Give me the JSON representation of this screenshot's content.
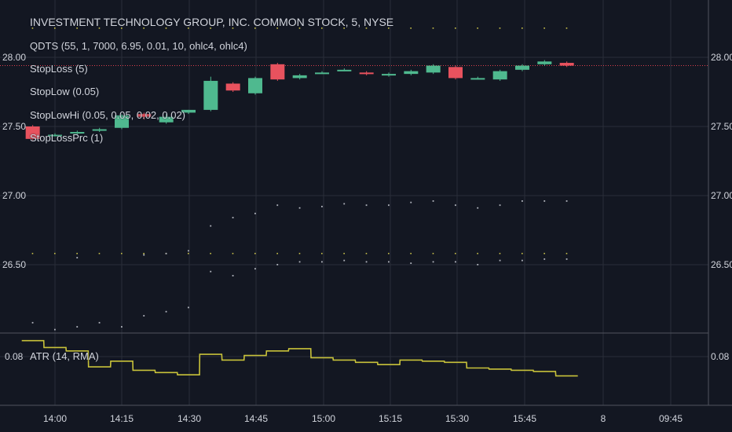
{
  "legend": {
    "title": "INVESTMENT TECHNOLOGY GROUP, INC. COMMON STOCK, 5, NYSE",
    "qdts": "QDTS (55, 1, 7000, 6.95, 0.01, 10, ohlc4, ohlc4)",
    "stoploss": "StopLoss (5)",
    "stoplow": "StopLow (0.05)",
    "stoplowhi": "StopLowHi (0.05, 0.05, 0.02, 0.02)",
    "stoplossprc": "StopLossPrc (1)",
    "atr": "ATR (14, RMA)"
  },
  "colors": {
    "background": "#131722",
    "grid": "#2a2e39",
    "up": "#4fb98f",
    "down": "#e8525e",
    "atr_line": "#c8c23a",
    "stop_line": "#e0404e",
    "dots": "#b2b5be",
    "yellow_dots": "#c9c24a",
    "text": "#d1d4dc"
  },
  "chart_data": [
    {
      "type": "candlestick",
      "title": "INVESTMENT TECHNOLOGY GROUP, INC. COMMON STOCK, 5, NYSE",
      "x_ticks": [
        "14:00",
        "14:15",
        "14:30",
        "14:45",
        "15:00",
        "15:15",
        "15:30",
        "15:45",
        "8",
        "09:45"
      ],
      "y_ticks": [
        "28.00",
        "27.50",
        "27.00",
        "26.50"
      ],
      "ylim": [
        26.0,
        28.4
      ],
      "grid": true,
      "stop_loss_level": 27.94,
      "candles": [
        {
          "t": "13:55",
          "o": 27.5,
          "h": 27.51,
          "l": 27.4,
          "c": 27.41
        },
        {
          "t": "14:00",
          "o": 27.44,
          "h": 27.45,
          "l": 27.43,
          "c": 27.44
        },
        {
          "t": "14:05",
          "o": 27.45,
          "h": 27.47,
          "l": 27.44,
          "c": 27.46
        },
        {
          "t": "14:10",
          "o": 27.47,
          "h": 27.49,
          "l": 27.46,
          "c": 27.48
        },
        {
          "t": "14:15",
          "o": 27.49,
          "h": 27.59,
          "l": 27.48,
          "c": 27.58
        },
        {
          "t": "14:20",
          "o": 27.59,
          "h": 27.6,
          "l": 27.55,
          "c": 27.57
        },
        {
          "t": "14:25",
          "o": 27.53,
          "h": 27.59,
          "l": 27.52,
          "c": 27.57
        },
        {
          "t": "14:30",
          "o": 27.6,
          "h": 27.62,
          "l": 27.59,
          "c": 27.62
        },
        {
          "t": "14:35",
          "o": 27.62,
          "h": 27.86,
          "l": 27.61,
          "c": 27.83
        },
        {
          "t": "14:40",
          "o": 27.81,
          "h": 27.82,
          "l": 27.75,
          "c": 27.76
        },
        {
          "t": "14:45",
          "o": 27.74,
          "h": 27.86,
          "l": 27.73,
          "c": 27.85
        },
        {
          "t": "14:50",
          "o": 27.95,
          "h": 27.96,
          "l": 27.83,
          "c": 27.84
        },
        {
          "t": "14:55",
          "o": 27.85,
          "h": 27.88,
          "l": 27.84,
          "c": 27.87
        },
        {
          "t": "15:00",
          "o": 27.89,
          "h": 27.9,
          "l": 27.88,
          "c": 27.89
        },
        {
          "t": "15:05",
          "o": 27.9,
          "h": 27.92,
          "l": 27.9,
          "c": 27.91
        },
        {
          "t": "15:10",
          "o": 27.89,
          "h": 27.9,
          "l": 27.87,
          "c": 27.88
        },
        {
          "t": "15:15",
          "o": 27.87,
          "h": 27.89,
          "l": 27.86,
          "c": 27.88
        },
        {
          "t": "15:20",
          "o": 27.88,
          "h": 27.91,
          "l": 27.87,
          "c": 27.9
        },
        {
          "t": "15:25",
          "o": 27.89,
          "h": 27.95,
          "l": 27.88,
          "c": 27.94
        },
        {
          "t": "15:30",
          "o": 27.93,
          "h": 27.94,
          "l": 27.84,
          "c": 27.85
        },
        {
          "t": "15:35",
          "o": 27.85,
          "h": 27.86,
          "l": 27.84,
          "c": 27.85
        },
        {
          "t": "15:40",
          "o": 27.84,
          "h": 27.91,
          "l": 27.83,
          "c": 27.9
        },
        {
          "t": "15:45",
          "o": 27.91,
          "h": 27.95,
          "l": 27.9,
          "c": 27.94
        },
        {
          "t": "15:50",
          "o": 27.95,
          "h": 27.98,
          "l": 27.94,
          "c": 27.97
        },
        {
          "t": "15:55",
          "o": 27.96,
          "h": 27.97,
          "l": 27.93,
          "c": 27.94
        }
      ],
      "indicator_dots": [
        {
          "t": "13:55",
          "y": 26.08
        },
        {
          "t": "14:00",
          "y": 26.03
        },
        {
          "t": "14:05",
          "y": 26.05
        },
        {
          "t": "14:10",
          "y": 26.08
        },
        {
          "t": "14:15",
          "y": 26.05
        },
        {
          "t": "14:20",
          "y": 26.13
        },
        {
          "t": "14:25",
          "y": 26.16
        },
        {
          "t": "14:30",
          "y": 26.19
        },
        {
          "t": "14:35",
          "y": 26.45
        },
        {
          "t": "14:40",
          "y": 26.42
        },
        {
          "t": "14:45",
          "y": 26.47
        },
        {
          "t": "14:50",
          "y": 26.5
        },
        {
          "t": "14:55",
          "y": 26.52
        },
        {
          "t": "15:00",
          "y": 26.52
        },
        {
          "t": "15:05",
          "y": 26.53
        },
        {
          "t": "15:10",
          "y": 26.52
        },
        {
          "t": "15:15",
          "y": 26.52
        },
        {
          "t": "15:20",
          "y": 26.51
        },
        {
          "t": "15:25",
          "y": 26.52
        },
        {
          "t": "15:30",
          "y": 26.52
        },
        {
          "t": "15:35",
          "y": 26.5
        },
        {
          "t": "15:40",
          "y": 26.53
        },
        {
          "t": "15:45",
          "y": 26.53
        },
        {
          "t": "15:50",
          "y": 26.54
        },
        {
          "t": "15:55",
          "y": 26.54
        },
        {
          "t": "14:05",
          "y": 26.55
        },
        {
          "t": "14:20",
          "y": 26.57
        },
        {
          "t": "14:25",
          "y": 26.58
        },
        {
          "t": "14:30",
          "y": 26.6
        },
        {
          "t": "14:35",
          "y": 26.78
        },
        {
          "t": "14:40",
          "y": 26.84
        },
        {
          "t": "14:45",
          "y": 26.87
        },
        {
          "t": "14:50",
          "y": 26.93
        },
        {
          "t": "14:55",
          "y": 26.91
        },
        {
          "t": "15:00",
          "y": 26.92
        },
        {
          "t": "15:05",
          "y": 26.94
        },
        {
          "t": "15:10",
          "y": 26.93
        },
        {
          "t": "15:15",
          "y": 26.93
        },
        {
          "t": "15:20",
          "y": 26.95
        },
        {
          "t": "15:25",
          "y": 26.96
        },
        {
          "t": "15:30",
          "y": 26.93
        },
        {
          "t": "15:35",
          "y": 26.91
        },
        {
          "t": "15:40",
          "y": 26.93
        },
        {
          "t": "15:45",
          "y": 26.96
        },
        {
          "t": "15:50",
          "y": 26.96
        },
        {
          "t": "15:55",
          "y": 26.96
        }
      ],
      "yellow_dot_rows": [
        28.21,
        26.58
      ]
    },
    {
      "type": "line",
      "title": "ATR (14, RMA)",
      "y_ticks": [
        "0.08"
      ],
      "step": true,
      "series": [
        {
          "x": [
            "13:55",
            "14:00",
            "14:05",
            "14:10",
            "14:15",
            "14:20",
            "14:25",
            "14:30",
            "14:35",
            "14:40",
            "14:45",
            "14:50",
            "14:55",
            "15:00",
            "15:05",
            "15:10",
            "15:15",
            "15:20",
            "15:25",
            "15:30",
            "15:35",
            "15:40",
            "15:45",
            "15:50",
            "15:55"
          ],
          "values": [
            0.094,
            0.088,
            0.085,
            0.071,
            0.076,
            0.068,
            0.066,
            0.064,
            0.082,
            0.077,
            0.081,
            0.085,
            0.087,
            0.079,
            0.077,
            0.075,
            0.073,
            0.077,
            0.076,
            0.075,
            0.07,
            0.069,
            0.068,
            0.067,
            0.063
          ]
        }
      ]
    }
  ]
}
